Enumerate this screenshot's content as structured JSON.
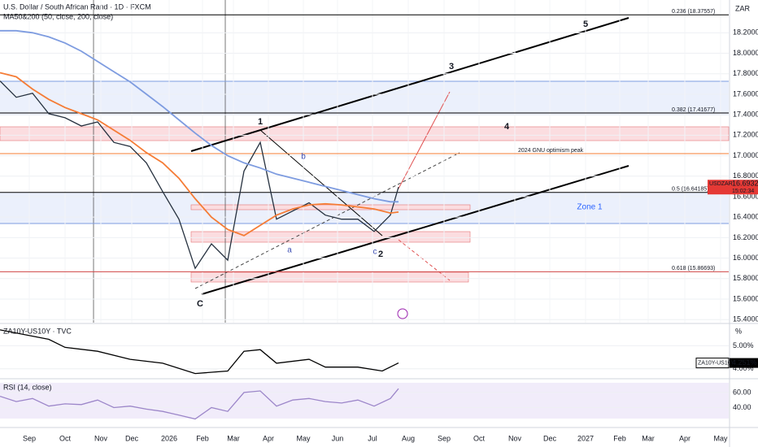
{
  "header": {
    "title": "U.S. Dollar / South African Rand · 1D · FXCM",
    "currency": "ZAR"
  },
  "chart_data": [
    {
      "type": "line",
      "legend_title": "MA50&200 (50, close, 200, close)",
      "x": [
        0,
        2,
        4,
        6,
        8,
        10,
        12,
        14,
        16,
        18,
        20,
        22,
        24,
        26,
        28,
        30,
        32,
        34,
        36,
        38,
        40,
        42,
        44,
        46,
        48,
        49
      ],
      "series": [
        {
          "name": "USDZAR",
          "color": "#26313f",
          "values": [
            17.73,
            17.57,
            17.61,
            17.41,
            17.37,
            17.29,
            17.33,
            17.13,
            17.09,
            16.93,
            16.65,
            16.38,
            15.9,
            16.14,
            15.98,
            16.85,
            17.13,
            16.38,
            16.46,
            16.54,
            16.42,
            16.38,
            16.38,
            16.26,
            16.42,
            16.69329
          ]
        },
        {
          "name": "MA50",
          "color": "#f57c36",
          "values": [
            17.81,
            17.77,
            17.65,
            17.55,
            17.47,
            17.41,
            17.35,
            17.25,
            17.15,
            17.03,
            16.93,
            16.78,
            16.58,
            16.4,
            16.28,
            16.22,
            16.32,
            16.42,
            16.48,
            16.52,
            16.53,
            16.52,
            16.5,
            16.48,
            16.44,
            16.45
          ]
        },
        {
          "name": "MA200",
          "color": "#7e9ce0",
          "values": [
            18.22,
            18.22,
            18.2,
            18.16,
            18.1,
            18.02,
            17.92,
            17.82,
            17.72,
            17.6,
            17.48,
            17.35,
            17.22,
            17.1,
            17.0,
            16.93,
            16.88,
            16.82,
            16.78,
            16.74,
            16.7,
            16.66,
            16.62,
            16.58,
            16.55,
            16.55
          ]
        }
      ],
      "last_price_label": "16.69329",
      "symbol": "USDZAR",
      "countdown": "15:02:34",
      "levels": [
        {
          "value": 18.37557,
          "label": "0.236 (18.37557)",
          "color": "#000000"
        },
        {
          "value": 17.41677,
          "label": "0.382 (17.41677)",
          "color": "#000000"
        },
        {
          "value": 16.64185,
          "label": "0.5 (16.64185)",
          "color": "#000000"
        },
        {
          "value": 15.86693,
          "label": "0.618 (15.86693)",
          "color": "#d04545"
        },
        {
          "value": 17.02,
          "label": "2024 GNU optimism peak",
          "color": "#f57c36"
        }
      ],
      "annotations": [
        "1",
        "2",
        "3",
        "4",
        "5",
        "a",
        "b",
        "c",
        "C",
        "Zone 1"
      ],
      "xlim": [
        0,
        89.6
      ],
      "ylim": [
        15.37,
        18.52
      ],
      "xticks": [
        {
          "value": 3.6,
          "label": "Sep"
        },
        {
          "value": 8,
          "label": "Oct"
        },
        {
          "value": 12.4,
          "label": "Nov"
        },
        {
          "value": 16.2,
          "label": "Dec"
        },
        {
          "value": 20.8,
          "label": "2026"
        },
        {
          "value": 24.9,
          "label": "Feb"
        },
        {
          "value": 28.7,
          "label": "Mar"
        },
        {
          "value": 33,
          "label": "Apr"
        },
        {
          "value": 37.3,
          "label": "May"
        },
        {
          "value": 41.5,
          "label": "Jun"
        },
        {
          "value": 45.8,
          "label": "Jul"
        },
        {
          "value": 50.2,
          "label": "Aug"
        },
        {
          "value": 54.6,
          "label": "Sep"
        },
        {
          "value": 58.9,
          "label": "Oct"
        },
        {
          "value": 63.3,
          "label": "Nov"
        },
        {
          "value": 67.6,
          "label": "Dec"
        },
        {
          "value": 72,
          "label": "2027"
        },
        {
          "value": 76.2,
          "label": "Feb"
        },
        {
          "value": 79.7,
          "label": "Mar"
        },
        {
          "value": 84.2,
          "label": "Apr"
        },
        {
          "value": 88.6,
          "label": "May"
        }
      ],
      "yticks": [
        {
          "value": 15.4,
          "label": "15.40000"
        },
        {
          "value": 15.6,
          "label": "15.60000"
        },
        {
          "value": 15.8,
          "label": "15.80000"
        },
        {
          "value": 16,
          "label": "16.00000"
        },
        {
          "value": 16.2,
          "label": "16.20000"
        },
        {
          "value": 16.4,
          "label": "16.40000"
        },
        {
          "value": 16.6,
          "label": "16.60000"
        },
        {
          "value": 16.8,
          "label": "16.80000"
        },
        {
          "value": 17,
          "label": "17.00000"
        },
        {
          "value": 17.2,
          "label": "17.20000"
        },
        {
          "value": 17.4,
          "label": "17.40000"
        },
        {
          "value": 17.6,
          "label": "17.60000"
        },
        {
          "value": 17.8,
          "label": "17.80000"
        },
        {
          "value": 18,
          "label": "18.00000"
        },
        {
          "value": 18.2,
          "label": "18.20000"
        }
      ],
      "grid": true
    },
    {
      "type": "line",
      "legend_title": "ZA10Y-US10Y · TVC",
      "unit": "%",
      "x": [
        0,
        6,
        8,
        12,
        16,
        20,
        24,
        28,
        30,
        32,
        34,
        38,
        40,
        44,
        47,
        49
      ],
      "series": [
        {
          "name": "ZA10Y-US10Y",
          "color": "#000000",
          "values": [
            5.69,
            5.28,
            4.93,
            4.76,
            4.41,
            4.24,
            3.79,
            3.9,
            4.76,
            4.83,
            4.24,
            4.41,
            4.07,
            4.07,
            3.9,
            4.251
          ]
        }
      ],
      "last_label": "4.251%",
      "xlim": [
        0,
        89.6
      ],
      "ylim": [
        3.6,
        5.9
      ],
      "yticks": [
        {
          "value": 4,
          "label": "4.00%"
        },
        {
          "value": 5,
          "label": "5.00%"
        }
      ],
      "grid": true
    },
    {
      "type": "line",
      "legend_title": "RSI (14, close)",
      "x": [
        0,
        2,
        4,
        6,
        8,
        10,
        12,
        14,
        16,
        18,
        20,
        22,
        24,
        26,
        28,
        30,
        32,
        34,
        36,
        38,
        40,
        42,
        44,
        46,
        48,
        49
      ],
      "series": [
        {
          "name": "RSI",
          "color": "#9c86c9",
          "values": [
            55,
            48,
            52,
            42,
            45,
            44,
            50,
            40,
            42,
            38,
            35,
            30,
            25,
            40,
            35,
            60,
            62,
            42,
            50,
            52,
            48,
            46,
            50,
            42,
            52,
            65
          ]
        }
      ],
      "xlim": [
        0,
        89.6
      ],
      "ylim": [
        18,
        76
      ],
      "yticks": [
        {
          "value": 40,
          "label": "40.00"
        },
        {
          "value": 60,
          "label": "60.00"
        }
      ],
      "grid": true
    }
  ]
}
